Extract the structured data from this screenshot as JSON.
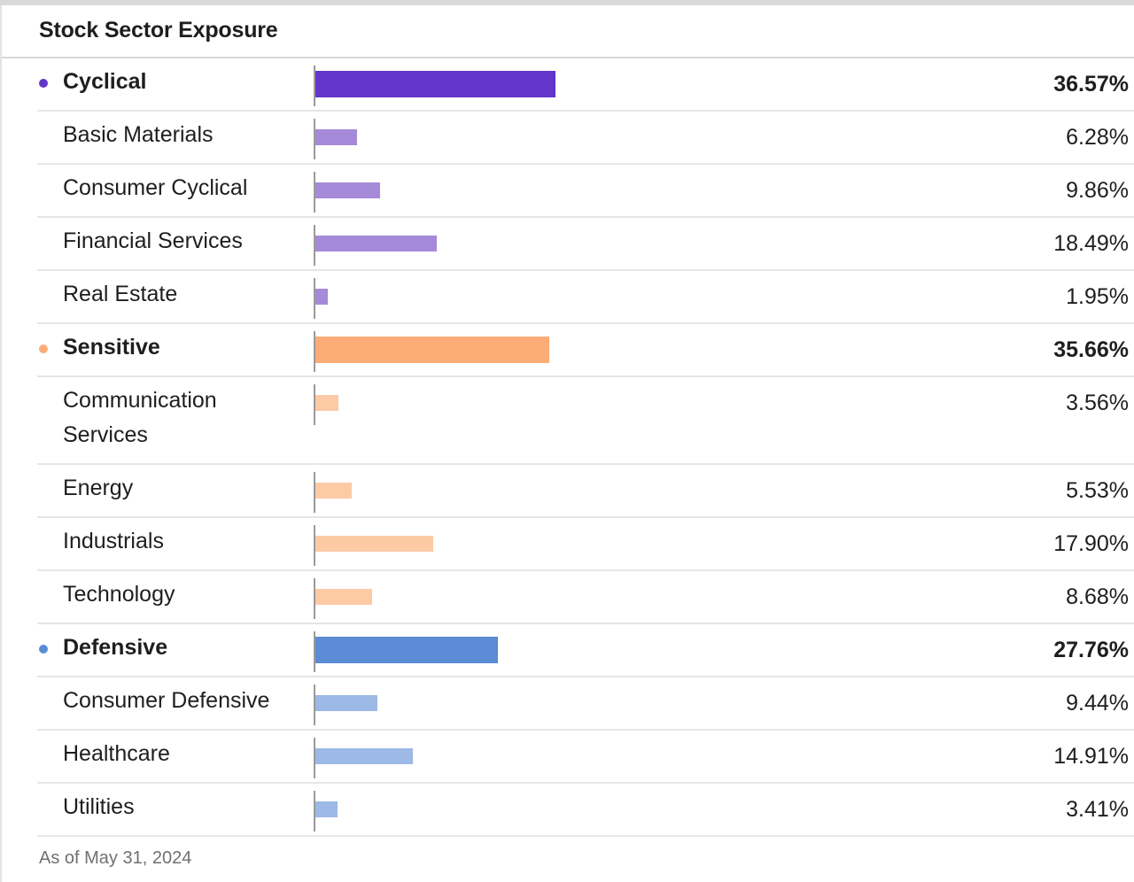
{
  "title": "Stock Sector Exposure",
  "footnote": "As of May 31, 2024",
  "colors": {
    "cyclical": "#6435c9",
    "cyclical_light": "#a58ad9",
    "sensitive": "#fbac77",
    "sensitive_light": "#fdcaa6",
    "defensive": "#5b8cd5",
    "defensive_light": "#9db9e5"
  },
  "chart_data": {
    "type": "bar",
    "title": "Stock Sector Exposure",
    "orientation": "horizontal",
    "xlim": [
      0,
      100
    ],
    "unit": "%",
    "rows": [
      {
        "label": "Cyclical",
        "value": 36.57,
        "display": "36.57%",
        "group": true,
        "color": "#6435c9"
      },
      {
        "label": "Basic Materials",
        "value": 6.28,
        "display": "6.28%",
        "group": false,
        "color": "#a58ad9"
      },
      {
        "label": "Consumer Cyclical",
        "value": 9.86,
        "display": "9.86%",
        "group": false,
        "color": "#a58ad9"
      },
      {
        "label": "Financial Services",
        "value": 18.49,
        "display": "18.49%",
        "group": false,
        "color": "#a58ad9"
      },
      {
        "label": "Real Estate",
        "value": 1.95,
        "display": "1.95%",
        "group": false,
        "color": "#a58ad9"
      },
      {
        "label": "Sensitive",
        "value": 35.66,
        "display": "35.66%",
        "group": true,
        "color": "#fbac77"
      },
      {
        "label": "Communication Services",
        "value": 3.56,
        "display": "3.56%",
        "group": false,
        "color": "#fdcaa6"
      },
      {
        "label": "Energy",
        "value": 5.53,
        "display": "5.53%",
        "group": false,
        "color": "#fdcaa6"
      },
      {
        "label": "Industrials",
        "value": 17.9,
        "display": "17.90%",
        "group": false,
        "color": "#fdcaa6"
      },
      {
        "label": "Technology",
        "value": 8.68,
        "display": "8.68%",
        "group": false,
        "color": "#fdcaa6"
      },
      {
        "label": "Defensive",
        "value": 27.76,
        "display": "27.76%",
        "group": true,
        "color": "#5b8cd5"
      },
      {
        "label": "Consumer Defensive",
        "value": 9.44,
        "display": "9.44%",
        "group": false,
        "color": "#9db9e5"
      },
      {
        "label": "Healthcare",
        "value": 14.91,
        "display": "14.91%",
        "group": false,
        "color": "#9db9e5"
      },
      {
        "label": "Utilities",
        "value": 3.41,
        "display": "3.41%",
        "group": false,
        "color": "#9db9e5"
      }
    ]
  }
}
